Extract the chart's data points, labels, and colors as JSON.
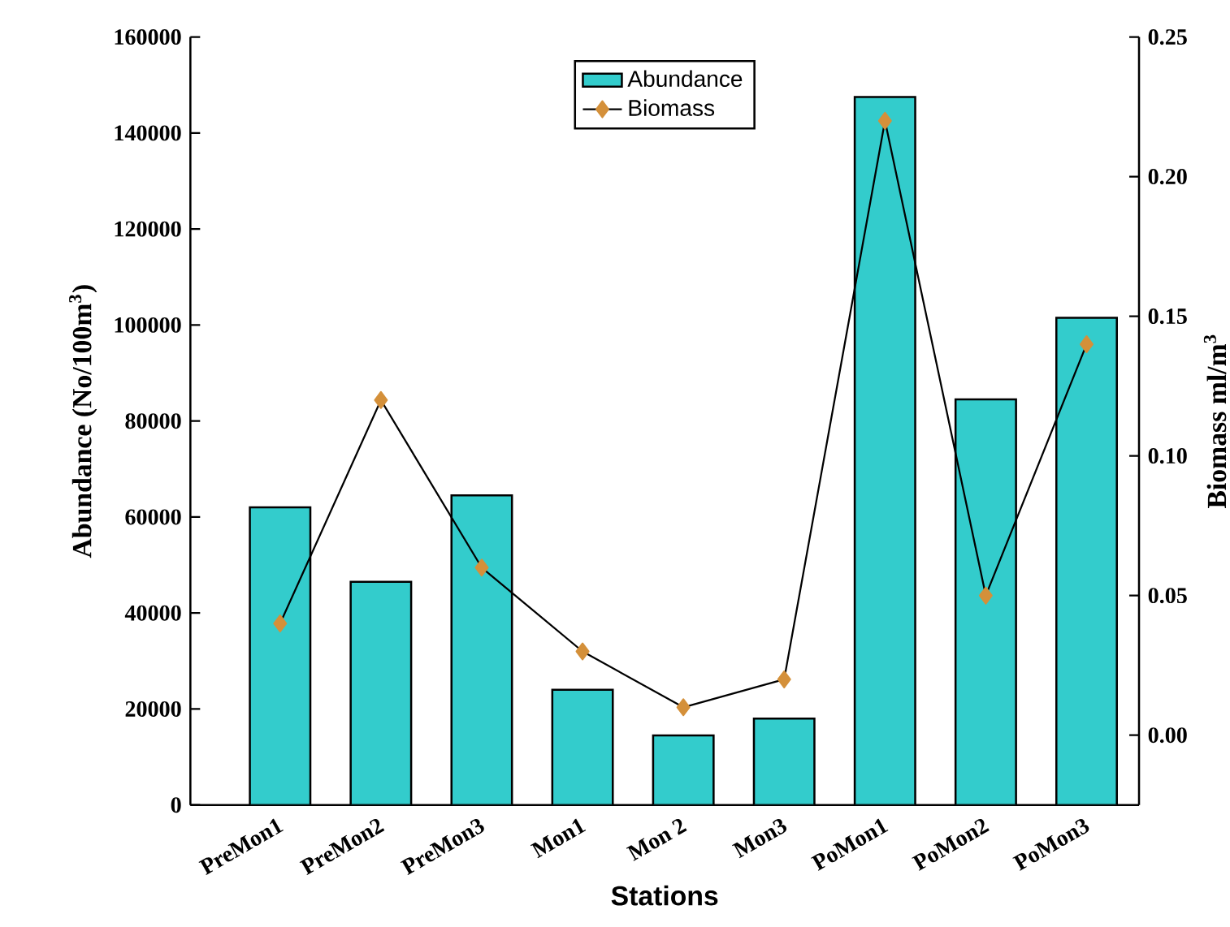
{
  "chart_data": {
    "type": "bar",
    "xlabel": "Stations",
    "ylabel": "Abundance (No/100m$^{3}$)",
    "y2label": "Biomass ml/m$^{3}$",
    "categories": [
      "PreMon1",
      "PreMon2",
      "PreMon3",
      "Mon1",
      "Mon 2",
      "Mon3",
      "PoMon1",
      "PoMon2",
      "PoMon3"
    ],
    "series": [
      {
        "name": "Abundance",
        "color": "#33cccc",
        "values": [
          62000,
          46500,
          64500,
          24000,
          14500,
          18000,
          147500,
          84500,
          101500
        ]
      },
      {
        "name": "Biomass",
        "type": "line",
        "axis": "y2",
        "color": "#000000",
        "values": [
          0.04,
          0.12,
          0.06,
          0.03,
          0.01,
          0.02,
          0.22,
          0.05,
          0.14
        ]
      }
    ],
    "ylim": [
      0,
      160000
    ],
    "yticks": [
      0,
      20000,
      40000,
      60000,
      80000,
      100000,
      120000,
      140000,
      160000
    ],
    "y2lim": [
      -0.025,
      0.25
    ],
    "y2ticks": [
      {
        "value": 0,
        "label": "0.00"
      },
      {
        "value": 0.05,
        "label": "0.05"
      },
      {
        "value": 0.1,
        "label": "0.10"
      },
      {
        "value": 0.15,
        "label": "0.15"
      },
      {
        "value": 0.2,
        "label": "0.20"
      },
      {
        "value": 0.25,
        "label": "0.25"
      }
    ],
    "marker": "diamond",
    "legend": "top",
    "grid": false
  }
}
